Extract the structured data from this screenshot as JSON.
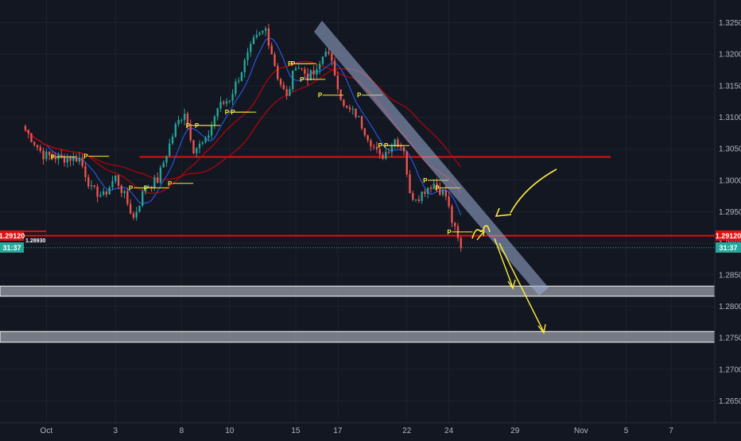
{
  "chart_data": {
    "type": "candlestick",
    "price_axis": {
      "min": 1.2605,
      "max": 1.3275,
      "ticks": [
        "1.32500",
        "1.32000",
        "1.31500",
        "1.31000",
        "1.30500",
        "1.30000",
        "1.29500",
        "1.29000",
        "1.28500",
        "1.28000",
        "1.27500",
        "1.27000",
        "1.26500"
      ],
      "tick_values": [
        1.325,
        1.32,
        1.315,
        1.31,
        1.305,
        1.3,
        1.295,
        1.29,
        1.285,
        1.28,
        1.275,
        1.27,
        1.265
      ]
    },
    "time_axis": {
      "labels": [
        "Oct",
        "3",
        "8",
        "10",
        "15",
        "17",
        "22",
        "24",
        "29",
        "Nov",
        "5",
        "7"
      ],
      "bar_index": [
        7,
        30,
        52,
        68,
        90,
        104,
        127,
        141,
        163,
        185,
        200,
        215
      ],
      "total_bars": 230
    },
    "current_price_label": "1.29120",
    "current_price": 1.2912,
    "countdown_label": "31:37",
    "countdown_price": 1.2893,
    "left_price_label": "1.29120",
    "tiny_price_label": "1.28930",
    "colors": {
      "background": "#131722",
      "bull": "#26a69a",
      "bear": "#ef5350",
      "sma_fast": "#2962ff",
      "sma_slow": "#d50000",
      "hline": "#e01010",
      "trend_channel": "#9fb1d6",
      "zone_fill": "#c7ccd6",
      "annotation": "#ffeb3b",
      "pivot_marker": "#ffeb3b",
      "axis_text": "#b2b5be"
    },
    "horizontal_lines": [
      1.3037,
      1.2912
    ],
    "zones": [
      [
        1.2816,
        1.2832
      ],
      [
        1.2743,
        1.276
      ]
    ],
    "pivot_marker_text": "P",
    "pivots": [
      [
        10,
        1.3037
      ],
      [
        21,
        1.3038
      ],
      [
        36,
        1.2988
      ],
      [
        41,
        1.2988
      ],
      [
        49,
        1.2995
      ],
      [
        55,
        1.3087
      ],
      [
        58,
        1.3087
      ],
      [
        68,
        1.3108
      ],
      [
        70,
        1.3108
      ],
      [
        89,
        1.3185
      ],
      [
        90,
        1.3185
      ],
      [
        93,
        1.316
      ],
      [
        99,
        1.3135
      ],
      [
        112,
        1.3135
      ],
      [
        119,
        1.3055
      ],
      [
        121,
        1.3055
      ],
      [
        134,
        1.3
      ],
      [
        138,
        1.2988
      ],
      [
        142,
        1.2918
      ]
    ]
  }
}
